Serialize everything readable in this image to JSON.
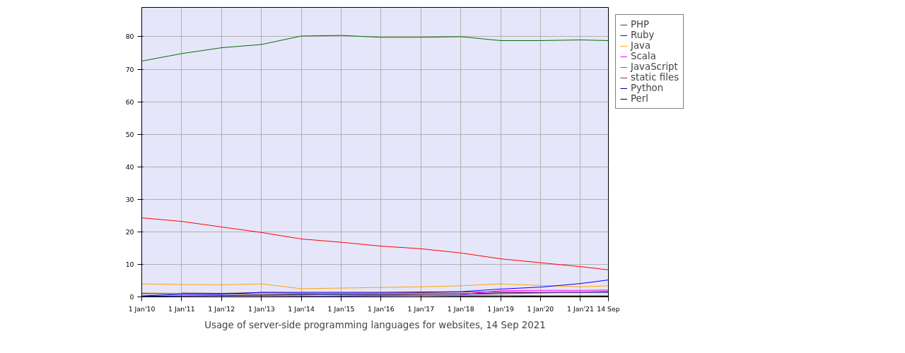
{
  "chart_data": {
    "type": "line",
    "x": [
      "2010-01-01",
      "2011-01-01",
      "2012-01-01",
      "2013-01-01",
      "2014-01-01",
      "2015-01-01",
      "2016-01-01",
      "2017-01-01",
      "2018-01-01",
      "2019-01-01",
      "2020-01-01",
      "2021-01-01",
      "2021-09-14"
    ],
    "series": [
      {
        "name": "PHP",
        "color": "#007000",
        "values": [
          72.5,
          74.8,
          76.6,
          77.6,
          80.2,
          80.4,
          79.8,
          79.8,
          80.0,
          78.8,
          78.8,
          79.0,
          78.8
        ]
      },
      {
        "color": "#ff0000",
        "values": [
          24.3,
          23.2,
          21.5,
          19.8,
          17.8,
          16.8,
          15.6,
          14.8,
          13.5,
          11.7,
          10.5,
          9.3,
          8.3
        ]
      },
      {
        "name": "Ruby",
        "color": "#0000ff",
        "values": [
          0.3,
          0.8,
          0.8,
          1.4,
          1.4,
          1.4,
          1.4,
          1.5,
          1.6,
          2.4,
          3.0,
          4.1,
          5.2
        ]
      },
      {
        "name": "Java",
        "color": "#ffa500",
        "values": [
          4.0,
          3.8,
          3.7,
          4.0,
          2.5,
          2.7,
          2.9,
          3.1,
          3.4,
          4.0,
          3.5,
          3.1,
          3.4
        ]
      },
      {
        "name": "Scala",
        "color": "#ff00ff",
        "values": [
          null,
          null,
          null,
          null,
          null,
          null,
          null,
          null,
          0.8,
          1.9,
          2.0,
          2.0,
          2.1
        ]
      },
      {
        "name": "JavaScript",
        "color": "#6a5acd",
        "values": [
          null,
          0.1,
          0.1,
          0.1,
          0.2,
          0.2,
          0.3,
          0.4,
          0.6,
          1.0,
          1.2,
          1.4,
          1.5
        ]
      },
      {
        "name": "static files",
        "color": "#a52a2a",
        "values": [
          null,
          1.2,
          1.1,
          1.3,
          1.1,
          1.1,
          1.2,
          1.3,
          1.5,
          1.5,
          1.4,
          1.5,
          1.7
        ]
      },
      {
        "name": "Python",
        "color": "#000080",
        "values": [
          0.2,
          0.3,
          0.4,
          0.5,
          0.6,
          0.7,
          0.8,
          0.9,
          1.0,
          1.2,
          1.3,
          1.4,
          1.4
        ]
      },
      {
        "color": "#cd853f",
        "values": [
          1.2,
          1.1,
          1.0,
          0.9,
          0.8,
          0.7,
          0.6,
          0.6,
          0.5,
          0.5,
          0.4,
          0.4,
          0.4
        ]
      },
      {
        "name": "Perl",
        "color": "#000000",
        "values": [
          1.0,
          1.0,
          0.9,
          0.8,
          0.7,
          0.6,
          0.5,
          0.4,
          0.3,
          0.3,
          0.2,
          0.2,
          0.2
        ]
      }
    ],
    "xlim": [
      "2010-01-01",
      "2021-09-14"
    ],
    "xticks": [
      {
        "value": "2010-01-01",
        "label": "1 Jan'10"
      },
      {
        "value": "2011-01-01",
        "label": "1 Jan'11"
      },
      {
        "value": "2012-01-01",
        "label": "1 Jan'12"
      },
      {
        "value": "2013-01-01",
        "label": "1 Jan'13"
      },
      {
        "value": "2014-01-01",
        "label": "1 Jan'14"
      },
      {
        "value": "2015-01-01",
        "label": "1 Jan'15"
      },
      {
        "value": "2016-01-01",
        "label": "1 Jan'16"
      },
      {
        "value": "2017-01-01",
        "label": "1 Jan'17"
      },
      {
        "value": "2018-01-01",
        "label": "1 Jan'18"
      },
      {
        "value": "2019-01-01",
        "label": "1 Jan'19"
      },
      {
        "value": "2020-01-01",
        "label": "1 Jan'20"
      },
      {
        "value": "2021-01-01",
        "label": "1 Jan'21"
      },
      {
        "value": "2021-09-14",
        "label": "14 Sep"
      }
    ],
    "ylim": [
      0,
      89
    ],
    "yticks": [
      0,
      10,
      20,
      30,
      40,
      50,
      60,
      70,
      80
    ],
    "grid": true,
    "legend": "top right",
    "marker": "none",
    "line_style": "solid",
    "annotations": [
      "Usage of server-side programming languages for websites, 14 Sep 2021"
    ]
  }
}
